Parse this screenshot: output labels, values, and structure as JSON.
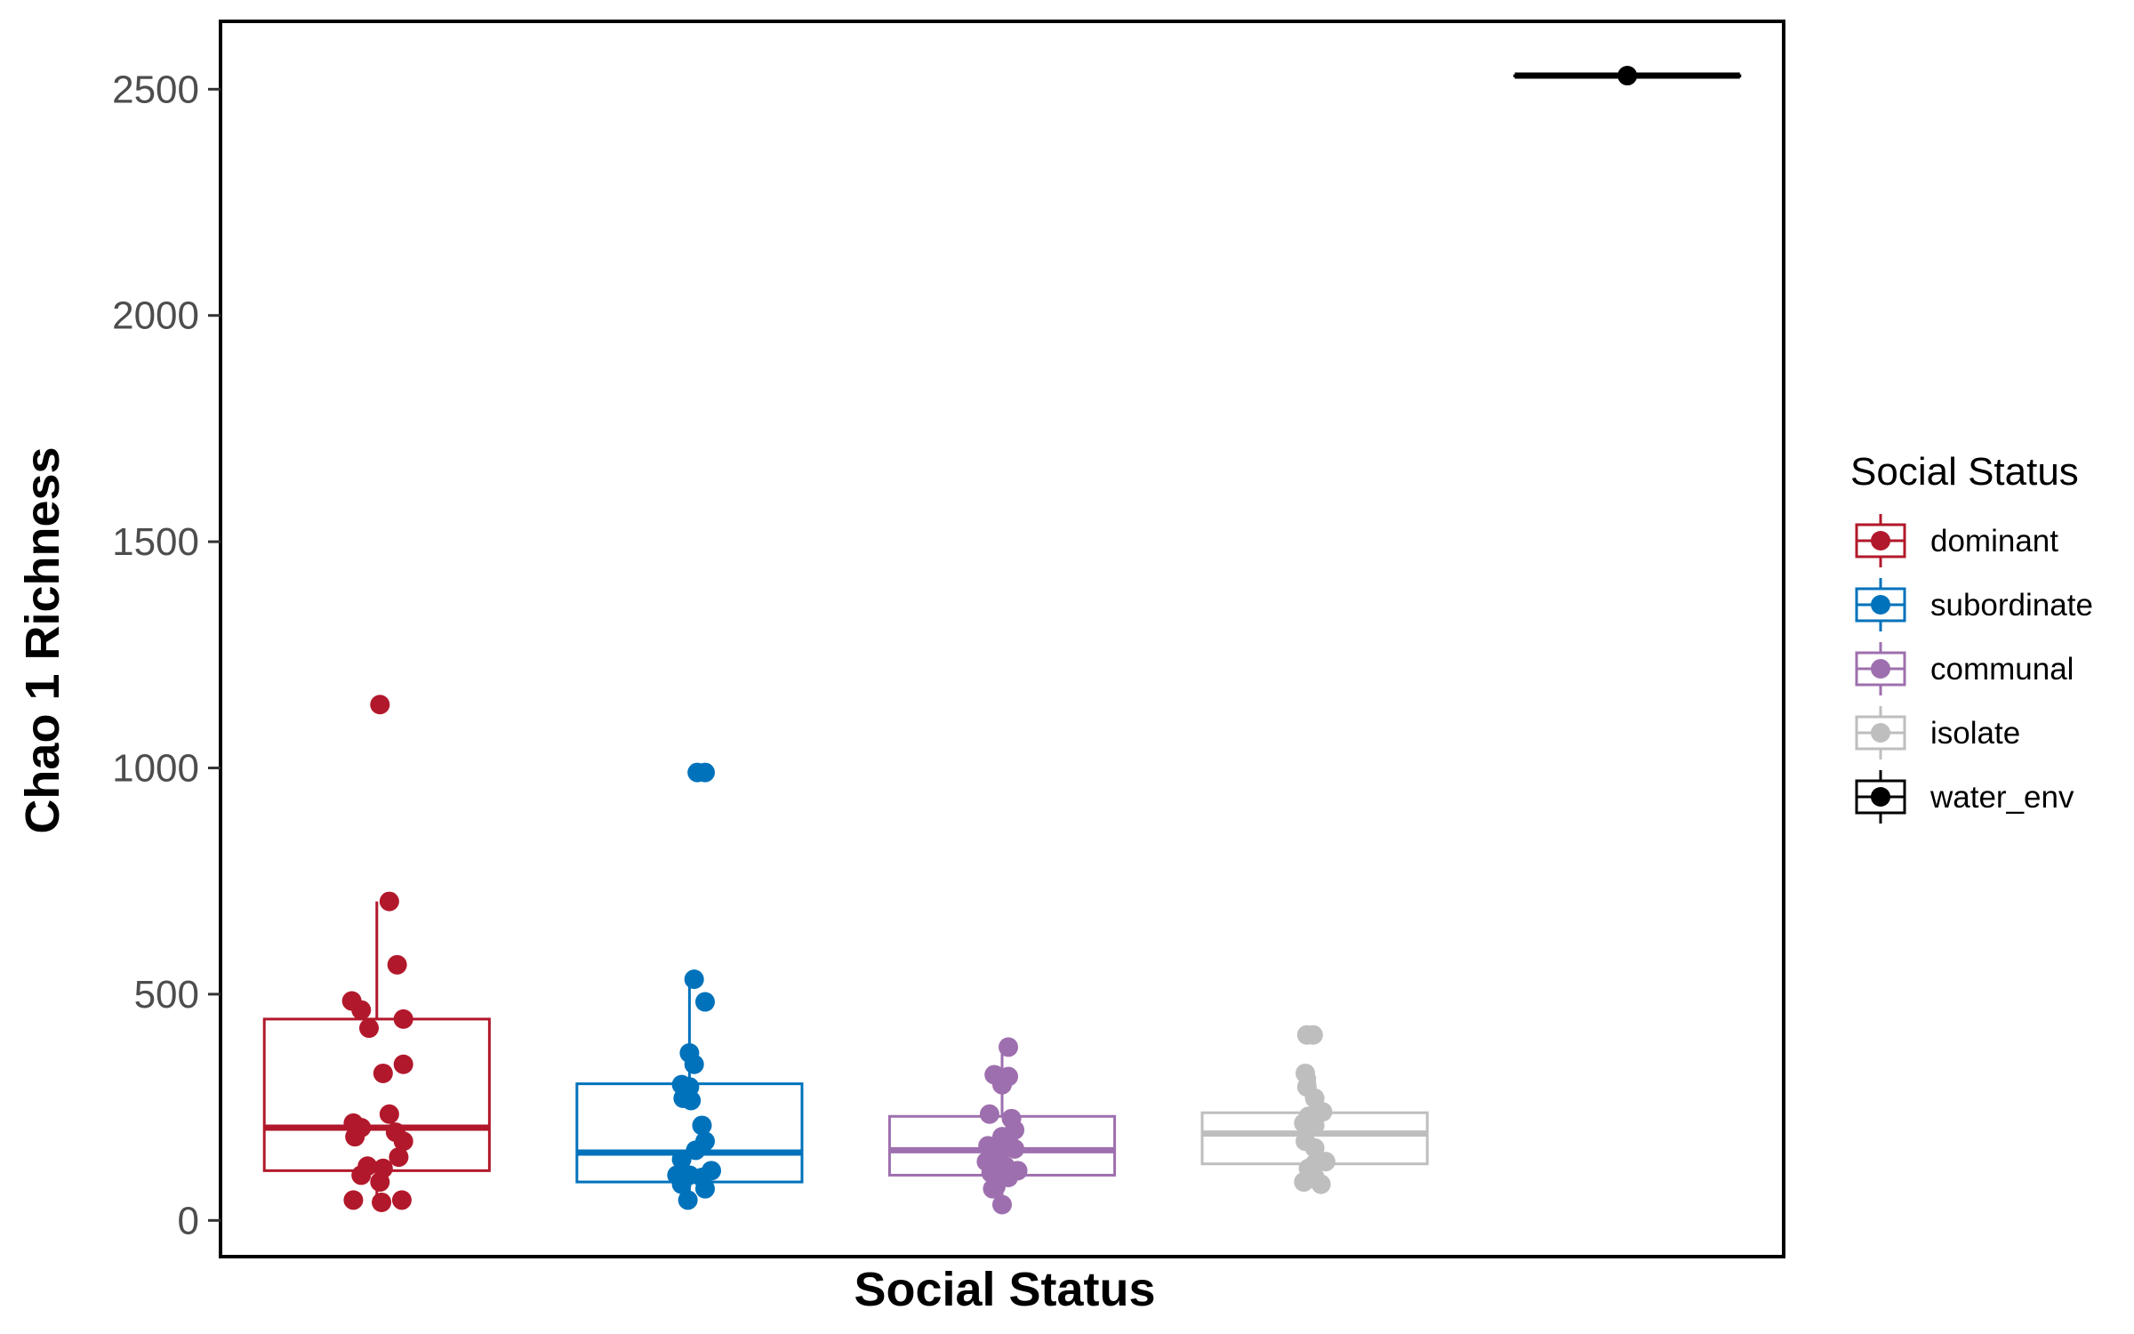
{
  "chart_data": {
    "type": "box",
    "xlabel": "Social Status",
    "ylabel": "Chao 1 Richness",
    "ylim": [
      -80,
      2650
    ],
    "yticks": [
      0,
      500,
      1000,
      1500,
      2000,
      2500
    ],
    "ytick_labels": [
      "0",
      "500",
      "1000",
      "1500",
      "2000",
      "2500"
    ],
    "x_tick_labels_shown": false,
    "grid": false,
    "legend": {
      "title": "Social Status",
      "placement": "right",
      "entries": [
        "dominant",
        "subordinate",
        "communal",
        "isolate",
        "water_env"
      ]
    },
    "series": [
      {
        "name": "dominant",
        "color": "#B2182B",
        "box": {
          "lower_whisker": 40,
          "q1": 110,
          "median": 205,
          "q3": 445,
          "upper_whisker": 705
        },
        "points": [
          {
            "x": 0.02,
            "y": 1140
          },
          {
            "x": 0.08,
            "y": 705
          },
          {
            "x": 0.13,
            "y": 565
          },
          {
            "x": -0.16,
            "y": 485
          },
          {
            "x": -0.1,
            "y": 465
          },
          {
            "x": 0.17,
            "y": 445
          },
          {
            "x": -0.05,
            "y": 425
          },
          {
            "x": 0.17,
            "y": 345
          },
          {
            "x": 0.04,
            "y": 325
          },
          {
            "x": 0.08,
            "y": 235
          },
          {
            "x": -0.15,
            "y": 215
          },
          {
            "x": -0.1,
            "y": 205
          },
          {
            "x": 0.12,
            "y": 195
          },
          {
            "x": -0.14,
            "y": 185
          },
          {
            "x": 0.17,
            "y": 175
          },
          {
            "x": 0.14,
            "y": 140
          },
          {
            "x": -0.06,
            "y": 120
          },
          {
            "x": 0.04,
            "y": 115
          },
          {
            "x": -0.1,
            "y": 100
          },
          {
            "x": 0.02,
            "y": 85
          },
          {
            "x": -0.15,
            "y": 45
          },
          {
            "x": 0.03,
            "y": 40
          },
          {
            "x": 0.16,
            "y": 45
          }
        ]
      },
      {
        "name": "subordinate",
        "color": "#0072BB",
        "box": {
          "lower_whisker": 45,
          "q1": 85,
          "median": 150,
          "q3": 302,
          "upper_whisker": 533
        },
        "points": [
          {
            "x": 0.05,
            "y": 990
          },
          {
            "x": 0.1,
            "y": 990
          },
          {
            "x": 0.03,
            "y": 533
          },
          {
            "x": 0.1,
            "y": 483
          },
          {
            "x": 0.0,
            "y": 370
          },
          {
            "x": 0.03,
            "y": 345
          },
          {
            "x": -0.05,
            "y": 300
          },
          {
            "x": 0.0,
            "y": 295
          },
          {
            "x": -0.04,
            "y": 270
          },
          {
            "x": 0.01,
            "y": 265
          },
          {
            "x": 0.08,
            "y": 210
          },
          {
            "x": 0.1,
            "y": 175
          },
          {
            "x": 0.04,
            "y": 155
          },
          {
            "x": -0.05,
            "y": 135
          },
          {
            "x": 0.14,
            "y": 110
          },
          {
            "x": -0.08,
            "y": 100
          },
          {
            "x": 0.0,
            "y": 100
          },
          {
            "x": 0.08,
            "y": 95
          },
          {
            "x": -0.05,
            "y": 80
          },
          {
            "x": 0.1,
            "y": 70
          },
          {
            "x": -0.01,
            "y": 45
          }
        ]
      },
      {
        "name": "communal",
        "color": "#9E6FAE",
        "box": {
          "lower_whisker": 35,
          "q1": 100,
          "median": 155,
          "q3": 230,
          "upper_whisker": 383
        },
        "points": [
          {
            "x": 0.04,
            "y": 383
          },
          {
            "x": -0.05,
            "y": 322
          },
          {
            "x": 0.04,
            "y": 318
          },
          {
            "x": 0.0,
            "y": 300
          },
          {
            "x": -0.08,
            "y": 235
          },
          {
            "x": 0.06,
            "y": 225
          },
          {
            "x": 0.08,
            "y": 200
          },
          {
            "x": 0.0,
            "y": 185
          },
          {
            "x": 0.04,
            "y": 175
          },
          {
            "x": -0.09,
            "y": 165
          },
          {
            "x": -0.05,
            "y": 160
          },
          {
            "x": 0.08,
            "y": 158
          },
          {
            "x": -0.02,
            "y": 140
          },
          {
            "x": -0.1,
            "y": 130
          },
          {
            "x": 0.02,
            "y": 120
          },
          {
            "x": -0.07,
            "y": 105
          },
          {
            "x": 0.1,
            "y": 110
          },
          {
            "x": 0.04,
            "y": 95
          },
          {
            "x": -0.04,
            "y": 75
          },
          {
            "x": -0.06,
            "y": 70
          },
          {
            "x": 0.0,
            "y": 35
          }
        ]
      },
      {
        "name": "isolate",
        "color": "#BEBEBE",
        "box": {
          "lower_whisker": 75,
          "q1": 125,
          "median": 192,
          "q3": 238,
          "upper_whisker": 320
        },
        "points": [
          {
            "x": -0.05,
            "y": 410
          },
          {
            "x": -0.01,
            "y": 410
          },
          {
            "x": -0.06,
            "y": 325
          },
          {
            "x": -0.05,
            "y": 295
          },
          {
            "x": 0.0,
            "y": 270
          },
          {
            "x": 0.05,
            "y": 240
          },
          {
            "x": -0.04,
            "y": 230
          },
          {
            "x": -0.07,
            "y": 215
          },
          {
            "x": 0.0,
            "y": 210
          },
          {
            "x": -0.06,
            "y": 175
          },
          {
            "x": 0.0,
            "y": 160
          },
          {
            "x": 0.07,
            "y": 130
          },
          {
            "x": 0.0,
            "y": 125
          },
          {
            "x": -0.04,
            "y": 115
          },
          {
            "x": 0.0,
            "y": 95
          },
          {
            "x": -0.07,
            "y": 85
          },
          {
            "x": 0.04,
            "y": 80
          }
        ]
      },
      {
        "name": "water_env",
        "color": "#000000",
        "box": {
          "lower_whisker": 2530,
          "q1": 2530,
          "median": 2530,
          "q3": 2530,
          "upper_whisker": 2530
        },
        "points": [
          {
            "x": 0.0,
            "y": 2530
          }
        ]
      }
    ]
  }
}
